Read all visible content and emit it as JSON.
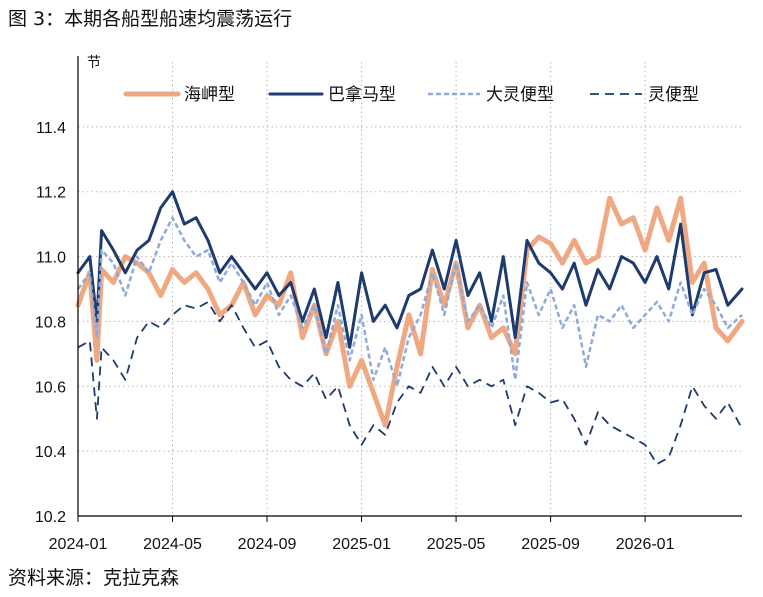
{
  "title": "图 3：本期各船型船速均震荡运行",
  "source": "资料来源：克拉克森",
  "colors": {
    "capesize": "#EFA882",
    "panamax": "#1E3A6E",
    "supramax": "#8EAAD8",
    "handysize": "#1E3A6E",
    "grid": "#B8B8B8",
    "axis": "#000000"
  },
  "chart_data": {
    "type": "line",
    "title": "本期各船型船速均震荡运行",
    "ylabel": "节",
    "xlabel": "",
    "ylim": [
      10.2,
      11.6
    ],
    "yticks": [
      "11.4",
      "11.2",
      "11.0",
      "10.8",
      "10.6",
      "10.4",
      "10.2"
    ],
    "ytick_values": [
      11.4,
      11.2,
      11.0,
      10.8,
      10.6,
      10.4,
      10.2
    ],
    "xlim": [
      0,
      28.1
    ],
    "xticks": [
      "2024-01",
      "2024-05",
      "2024-09",
      "2025-01",
      "2025-05",
      "2025-09",
      "2026-01"
    ],
    "xtick_positions": [
      0,
      4,
      8,
      12,
      16,
      20,
      24
    ],
    "grid": "dotted",
    "legend_position": "top",
    "series": [
      {
        "name": "海岬型",
        "style": "solid-thick",
        "color_key": "capesize",
        "x": [
          0,
          0.5,
          0.8,
          1,
          1.5,
          2,
          2.5,
          3,
          3.5,
          4,
          4.5,
          5,
          5.5,
          6,
          6.5,
          7,
          7.5,
          8,
          8.5,
          9,
          9.5,
          10,
          10.5,
          11,
          11.5,
          12,
          12.5,
          13,
          13.5,
          14,
          14.5,
          15,
          15.5,
          16,
          16.5,
          17,
          17.5,
          18,
          18.5,
          19,
          19.5,
          20,
          20.5,
          21,
          21.5,
          22,
          22.5,
          23,
          23.5,
          24,
          24.5,
          25,
          25.5,
          26,
          26.5,
          27,
          27.5,
          28.1
        ],
        "y": [
          10.85,
          10.95,
          10.68,
          10.96,
          10.92,
          11.0,
          10.98,
          10.95,
          10.88,
          10.96,
          10.92,
          10.95,
          10.9,
          10.82,
          10.85,
          10.92,
          10.82,
          10.88,
          10.85,
          10.95,
          10.75,
          10.85,
          10.7,
          10.8,
          10.6,
          10.68,
          10.58,
          10.48,
          10.66,
          10.82,
          10.7,
          10.96,
          10.85,
          10.98,
          10.78,
          10.85,
          10.75,
          10.78,
          10.7,
          11.02,
          11.06,
          11.04,
          10.98,
          11.05,
          10.98,
          11.0,
          11.18,
          11.1,
          11.12,
          11.02,
          11.15,
          11.05,
          11.18,
          10.92,
          10.98,
          10.78,
          10.74,
          10.8
        ]
      },
      {
        "name": "巴拿马型",
        "style": "solid",
        "color_key": "panamax",
        "x": [
          0,
          0.5,
          0.8,
          1,
          1.5,
          2,
          2.5,
          3,
          3.5,
          4,
          4.5,
          5,
          5.5,
          6,
          6.5,
          7,
          7.5,
          8,
          8.5,
          9,
          9.5,
          10,
          10.5,
          11,
          11.5,
          12,
          12.5,
          13,
          13.5,
          14,
          14.5,
          15,
          15.5,
          16,
          16.5,
          17,
          17.5,
          18,
          18.5,
          19,
          19.5,
          20,
          20.5,
          21,
          21.5,
          22,
          22.5,
          23,
          23.5,
          24,
          24.5,
          25,
          25.5,
          26,
          26.5,
          27,
          27.5,
          28.1
        ],
        "y": [
          10.95,
          11.0,
          10.8,
          11.08,
          11.02,
          10.95,
          11.02,
          11.05,
          11.15,
          11.2,
          11.1,
          11.12,
          11.05,
          10.95,
          11.0,
          10.95,
          10.9,
          10.95,
          10.88,
          10.92,
          10.8,
          10.9,
          10.75,
          10.92,
          10.72,
          10.95,
          10.8,
          10.85,
          10.78,
          10.88,
          10.9,
          11.02,
          10.9,
          11.05,
          10.88,
          10.95,
          10.8,
          11.0,
          10.75,
          11.05,
          10.98,
          10.95,
          10.9,
          10.98,
          10.85,
          10.96,
          10.9,
          11.0,
          10.98,
          10.92,
          11.0,
          10.9,
          11.1,
          10.82,
          10.95,
          10.96,
          10.85,
          10.9
        ]
      },
      {
        "name": "大灵便型",
        "style": "dash-light",
        "color_key": "supramax",
        "x": [
          0,
          0.5,
          0.8,
          1,
          1.5,
          2,
          2.5,
          3,
          3.5,
          4,
          4.5,
          5,
          5.5,
          6,
          6.5,
          7,
          7.5,
          8,
          8.5,
          9,
          9.5,
          10,
          10.5,
          11,
          11.5,
          12,
          12.5,
          13,
          13.5,
          14,
          14.5,
          15,
          15.5,
          16,
          16.5,
          17,
          17.5,
          18,
          18.5,
          19,
          19.5,
          20,
          20.5,
          21,
          21.5,
          22,
          22.5,
          23,
          23.5,
          24,
          24.5,
          25,
          25.5,
          26,
          26.5,
          27,
          27.5,
          28.1
        ],
        "y": [
          10.9,
          10.95,
          10.75,
          11.02,
          10.98,
          10.88,
          11.0,
          10.95,
          11.05,
          11.12,
          11.05,
          11.0,
          11.02,
          10.92,
          10.98,
          10.92,
          10.85,
          10.92,
          10.82,
          10.88,
          10.78,
          10.85,
          10.7,
          10.85,
          10.68,
          10.82,
          10.62,
          10.72,
          10.6,
          10.75,
          10.82,
          10.95,
          10.82,
          10.98,
          10.8,
          10.85,
          10.78,
          10.88,
          10.62,
          10.92,
          10.82,
          10.9,
          10.78,
          10.85,
          10.66,
          10.82,
          10.8,
          10.85,
          10.78,
          10.82,
          10.86,
          10.8,
          10.92,
          10.82,
          10.9,
          10.85,
          10.78,
          10.82
        ]
      },
      {
        "name": "灵便型",
        "style": "dash-dark",
        "color_key": "handysize",
        "x": [
          0,
          0.5,
          0.8,
          1,
          1.5,
          2,
          2.5,
          3,
          3.5,
          4,
          4.5,
          5,
          5.5,
          6,
          6.5,
          7,
          7.5,
          8,
          8.5,
          9,
          9.5,
          10,
          10.5,
          11,
          11.5,
          12,
          12.5,
          13,
          13.5,
          14,
          14.5,
          15,
          15.5,
          16,
          16.5,
          17,
          17.5,
          18,
          18.5,
          19,
          19.5,
          20,
          20.5,
          21,
          21.5,
          22,
          22.5,
          23,
          23.5,
          24,
          24.5,
          25,
          25.5,
          26,
          26.5,
          27,
          27.5,
          28.1
        ],
        "y": [
          10.72,
          10.74,
          10.5,
          10.72,
          10.68,
          10.62,
          10.75,
          10.8,
          10.78,
          10.82,
          10.85,
          10.84,
          10.86,
          10.8,
          10.85,
          10.78,
          10.72,
          10.74,
          10.66,
          10.62,
          10.6,
          10.64,
          10.56,
          10.6,
          10.48,
          10.42,
          10.48,
          10.45,
          10.55,
          10.6,
          10.58,
          10.66,
          10.6,
          10.66,
          10.6,
          10.62,
          10.6,
          10.62,
          10.48,
          10.6,
          10.58,
          10.55,
          10.56,
          10.5,
          10.42,
          10.52,
          10.48,
          10.46,
          10.44,
          10.42,
          10.36,
          10.38,
          10.48,
          10.6,
          10.54,
          10.5,
          10.55,
          10.47
        ]
      }
    ]
  }
}
